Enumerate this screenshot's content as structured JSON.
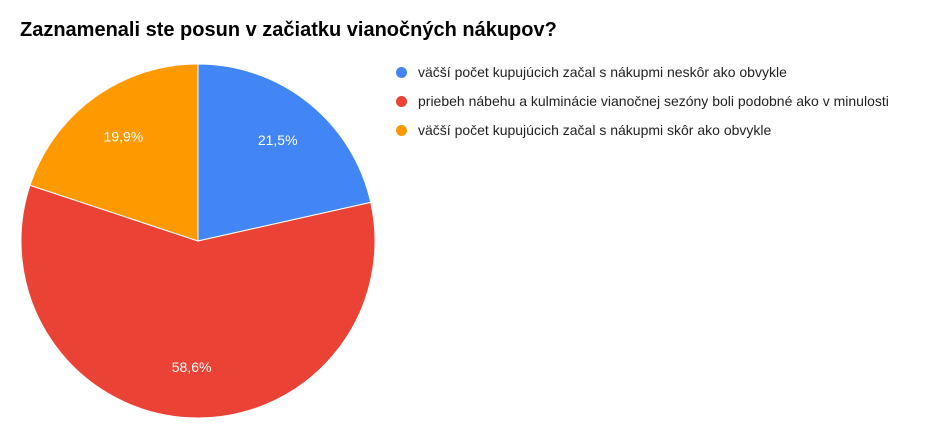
{
  "chart_data": {
    "type": "pie",
    "title": "Zaznamenali ste posun v začiatku vianočných nákupov?",
    "categories": [
      "väčší počet kupujúcich začal s nákupmi neskôr ako obvykle",
      "priebeh nábehu a kulminácie vianočnej sezóny boli podobné ako v minulosti",
      "väčší počet kupujúcich začal s nákupmi skôr ako obvykle"
    ],
    "values": [
      21.5,
      58.6,
      19.9
    ],
    "value_labels": [
      "21,5%",
      "58,6%",
      "19,9%"
    ],
    "colors": [
      "#4285f4",
      "#ea4335",
      "#ff9900"
    ],
    "legend": "right"
  }
}
